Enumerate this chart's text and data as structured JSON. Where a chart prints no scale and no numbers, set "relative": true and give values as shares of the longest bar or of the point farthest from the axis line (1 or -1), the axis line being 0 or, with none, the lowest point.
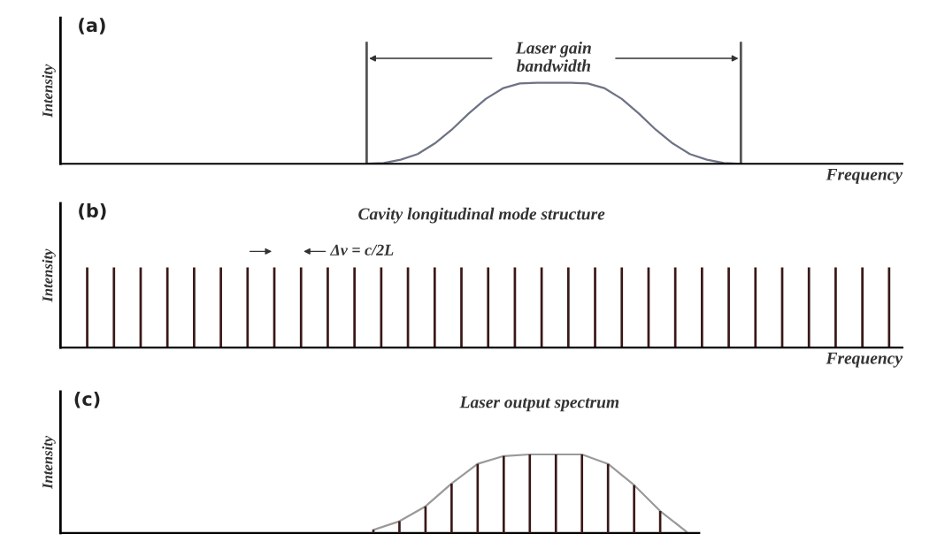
{
  "chart_data": [
    {
      "type": "line",
      "relative": true,
      "xlabel": "Frequency",
      "ylabel": "Intensity",
      "tick_labels": false,
      "annotations": [
        "(a)",
        "Laser gain bandwidth"
      ],
      "categories": [
        null,
        null,
        null,
        null,
        null,
        null,
        null,
        null,
        null,
        null,
        null,
        null,
        null,
        null,
        null,
        null,
        null,
        null,
        null,
        null,
        null,
        null,
        null,
        null,
        null,
        null,
        null,
        null,
        null,
        null,
        null,
        null,
        null,
        null,
        null,
        null,
        null,
        null,
        null,
        null,
        null,
        null,
        null,
        null,
        null,
        null,
        null,
        null,
        null
      ],
      "series": [
        {
          "color": "#6e7385",
          "values": [
            null,
            null,
            null,
            null,
            null,
            null,
            null,
            null,
            null,
            null,
            null,
            null,
            null,
            null,
            null,
            null,
            null,
            0,
            0.01,
            0.05,
            0.12,
            0.25,
            0.42,
            0.62,
            0.8,
            0.93,
            0.99,
            1,
            1,
            1,
            0.99,
            0.93,
            0.8,
            0.62,
            0.42,
            0.25,
            0.12,
            0.05,
            0.01,
            0,
            null,
            null,
            null,
            null,
            null,
            null,
            null,
            null,
            null
          ]
        }
      ]
    },
    {
      "type": "bar",
      "relative": true,
      "title": "Cavity longitudinal mode structure",
      "xlabel": "Frequency",
      "ylabel": "Intensity",
      "tick_labels": false,
      "annotations": [
        "(b)",
        "Δν = c/2L"
      ],
      "categories": [
        null,
        null,
        null,
        null,
        null,
        null,
        null,
        null,
        null,
        null,
        null,
        null,
        null,
        null,
        null,
        null,
        null,
        null,
        null,
        null,
        null,
        null,
        null,
        null,
        null,
        null,
        null,
        null,
        null,
        null,
        null
      ],
      "series": [
        {
          "color": "#3a1818",
          "values": [
            1,
            1,
            1,
            1,
            1,
            1,
            1,
            1,
            1,
            1,
            1,
            1,
            1,
            1,
            1,
            1,
            1,
            1,
            1,
            1,
            1,
            1,
            1,
            1,
            1,
            1,
            1,
            1,
            1,
            1,
            1
          ]
        }
      ]
    },
    {
      "type": "line",
      "relative": true,
      "title": "Laser output spectrum",
      "ylabel": "Intensity",
      "tick_labels": false,
      "annotations": [
        "(c)"
      ],
      "categories": [
        null,
        null,
        null,
        null,
        null,
        null,
        null,
        null,
        null,
        null,
        null,
        null,
        null,
        null,
        null,
        null,
        null,
        null,
        null,
        null,
        null,
        null,
        null,
        null
      ],
      "series": [
        {
          "color": "#9a9a9a",
          "values": [
            null,
            null,
            null,
            null,
            null,
            null,
            null,
            null,
            null,
            null,
            null,
            0.04,
            0.15,
            0.34,
            0.63,
            0.88,
            0.98,
            1,
            1,
            1,
            0.88,
            0.61,
            0.28,
            0.02
          ]
        }
      ]
    },
    {
      "type": "bar",
      "relative": true,
      "tick_labels": false,
      "categories": [
        null,
        null,
        null,
        null,
        null,
        null,
        null,
        null,
        null,
        null,
        null,
        null
      ],
      "series": [
        {
          "color": "#3a1818",
          "values": [
            0.04,
            0.15,
            0.34,
            0.63,
            0.88,
            0.98,
            1,
            1,
            1,
            0.88,
            0.61,
            0.28
          ]
        }
      ]
    }
  ]
}
